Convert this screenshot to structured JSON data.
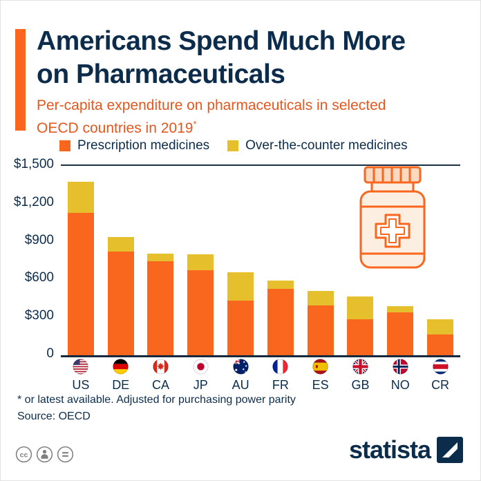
{
  "header": {
    "title_line1": "Americans Spend Much More",
    "title_line2": "on Pharmaceuticals",
    "subtitle_line1": "Per-capita expenditure on pharmaceuticals in selected",
    "subtitle_line2": "OECD countries in 2019",
    "asterisk": "*"
  },
  "legend": [
    {
      "label": "Prescription medicines",
      "color": "#f9671f"
    },
    {
      "label": "Over-the-counter medicines",
      "color": "#e6bf2d"
    }
  ],
  "chart_data": {
    "type": "bar",
    "stacked": true,
    "title": "Per-capita expenditure on pharmaceuticals in selected OECD countries in 2019",
    "unit": "USD per capita",
    "categories": [
      "US",
      "DE",
      "CA",
      "JP",
      "AU",
      "FR",
      "ES",
      "GB",
      "NO",
      "CR"
    ],
    "series": [
      {
        "name": "Prescription medicines",
        "color": "#f9671f",
        "values": [
          1128,
          823,
          742,
          672,
          432,
          528,
          392,
          283,
          338,
          167
        ]
      },
      {
        "name": "Over-the-counter medicines",
        "color": "#e6bf2d",
        "values": [
          248,
          112,
          64,
          126,
          226,
          62,
          116,
          182,
          52,
          116
        ]
      }
    ],
    "totals": [
      1376,
      935,
      806,
      798,
      658,
      590,
      508,
      465,
      390,
      283
    ],
    "ylim": [
      0,
      1500
    ],
    "yticks": [
      "$1,500",
      "$1,200",
      "$900",
      "$600",
      "$300",
      "0"
    ],
    "ytick_values": [
      1500,
      1200,
      900,
      600,
      300,
      0
    ],
    "grid": false,
    "legend_position": "top"
  },
  "footer": {
    "note": "* or latest available. Adjusted for purchasing power parity",
    "source": "Source: OECD"
  },
  "branding": {
    "logo_text": "statista"
  },
  "colors": {
    "title": "#0c2c4c",
    "subtitle": "#e4571f",
    "prescription": "#f9671f",
    "otc": "#e6bf2d",
    "axis": "#15283d"
  }
}
